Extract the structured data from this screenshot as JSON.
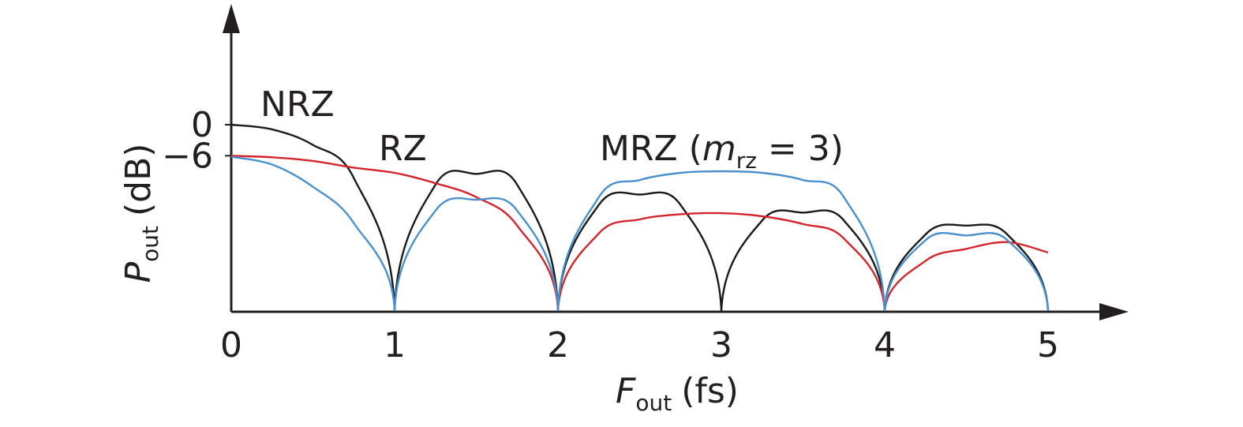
{
  "chart_data": {
    "type": "line",
    "xlabel": {
      "main": "F",
      "sub": "out",
      "unit": "(fs)"
    },
    "ylabel": {
      "main": "P",
      "sub": "out",
      "unit": "(dB)"
    },
    "xlim": [
      0,
      5
    ],
    "x_ticks": [
      "0",
      "1",
      "2",
      "3",
      "4",
      "5"
    ],
    "y_ticks": [
      {
        "label": "0",
        "value": 0
      },
      {
        "label": "−6",
        "value": -6
      }
    ],
    "ylim": [
      -36,
      0
    ],
    "grid": false,
    "series": [
      {
        "name": "NRZ",
        "color": "#1a1a1a",
        "points": [
          [
            0,
            0
          ],
          [
            0.25,
            -0.9
          ],
          [
            0.5,
            -3.9
          ],
          [
            0.75,
            -10.3
          ],
          [
            1,
            -36
          ],
          [
            1.25,
            -11.6
          ],
          [
            1.5,
            -9.5
          ],
          [
            1.75,
            -11.6
          ],
          [
            2,
            -36
          ],
          [
            2.25,
            -15.5
          ],
          [
            2.5,
            -13.5
          ],
          [
            2.75,
            -15.5
          ],
          [
            3,
            -36
          ],
          [
            3.25,
            -18.5
          ],
          [
            3.5,
            -17
          ],
          [
            3.75,
            -18.5
          ],
          [
            4,
            -36
          ],
          [
            4.25,
            -21.2
          ],
          [
            4.5,
            -19.5
          ],
          [
            4.75,
            -21.2
          ],
          [
            5,
            -36
          ]
        ]
      },
      {
        "name": "RZ",
        "color": "#d3252b",
        "points": [
          [
            0,
            -6
          ],
          [
            0.25,
            -6.3
          ],
          [
            0.5,
            -7
          ],
          [
            0.75,
            -8.3
          ],
          [
            1,
            -9.3
          ],
          [
            1.25,
            -11.3
          ],
          [
            1.5,
            -14
          ],
          [
            1.75,
            -19.5
          ],
          [
            2,
            -36
          ],
          [
            2.25,
            -21
          ],
          [
            2.5,
            -18.3
          ],
          [
            2.75,
            -17.3
          ],
          [
            3,
            -17.1
          ],
          [
            3.25,
            -17.7
          ],
          [
            3.5,
            -19.2
          ],
          [
            3.75,
            -22
          ],
          [
            4,
            -36
          ],
          [
            4.25,
            -26.3
          ],
          [
            4.5,
            -24
          ],
          [
            4.75,
            -22.7
          ],
          [
            5,
            -24.7
          ]
        ]
      },
      {
        "name": "MRZ (m_rz = 3)",
        "color": "#4a90cc",
        "points": [
          [
            0,
            -6.2
          ],
          [
            0.25,
            -7.7
          ],
          [
            0.5,
            -12
          ],
          [
            0.75,
            -19
          ],
          [
            1,
            -36
          ],
          [
            1.25,
            -16.6
          ],
          [
            1.5,
            -14.5
          ],
          [
            1.75,
            -16.6
          ],
          [
            2,
            -36
          ],
          [
            2.25,
            -14
          ],
          [
            2.5,
            -10.7
          ],
          [
            2.75,
            -9.3
          ],
          [
            3,
            -9
          ],
          [
            3.25,
            -9.3
          ],
          [
            3.5,
            -10.7
          ],
          [
            3.75,
            -14
          ],
          [
            4,
            -36
          ],
          [
            4.25,
            -22.3
          ],
          [
            4.5,
            -21.4
          ],
          [
            4.75,
            -22.3
          ],
          [
            5,
            -36
          ]
        ]
      }
    ],
    "annotations": [
      {
        "series": "NRZ",
        "text": "NRZ"
      },
      {
        "series": "RZ",
        "text": "RZ"
      },
      {
        "series": "MRZ (m_rz = 3)",
        "parts": [
          "MRZ (",
          "m",
          "rz",
          " = 3)"
        ]
      }
    ]
  }
}
